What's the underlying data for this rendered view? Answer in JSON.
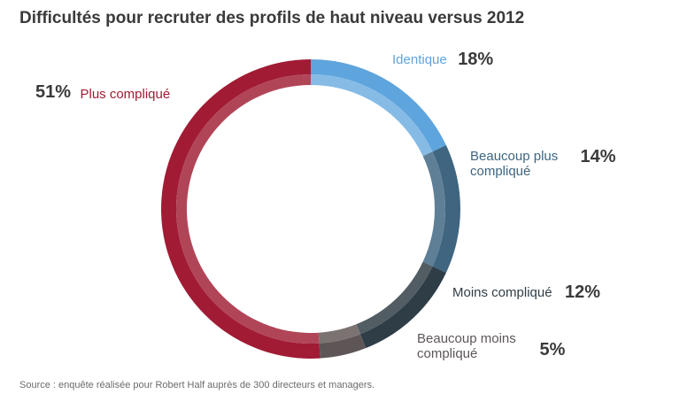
{
  "title": "Difficultés pour recruter des profils de haut niveau versus 2012",
  "source": "Source : enquête réalisée pour Robert Half auprès de 300 directeurs et managers.",
  "chart_data": {
    "type": "pie",
    "style": "donut",
    "title": "Difficultés pour recruter des profils de haut niveau versus 2012",
    "slices": [
      {
        "label": "Identique",
        "value": 18,
        "display": "18%",
        "color": "#5ea4dd",
        "inner_color": "#86bbe6"
      },
      {
        "label": "Beaucoup plus compliqué",
        "value": 14,
        "display": "14%",
        "color": "#3f6580",
        "inner_color": "#5e7f96"
      },
      {
        "label": "Moins compliqué",
        "value": 12,
        "display": "12%",
        "color": "#2f3d47",
        "inner_color": "#525c63"
      },
      {
        "label": "Beaucoup moins compliqué",
        "value": 5,
        "display": "5%",
        "color": "#5e5656",
        "inner_color": "#7a7371"
      },
      {
        "label": "Plus compliqué",
        "value": 51,
        "display": "51%",
        "color": "#a11b34",
        "inner_color": "#b14558"
      }
    ]
  }
}
